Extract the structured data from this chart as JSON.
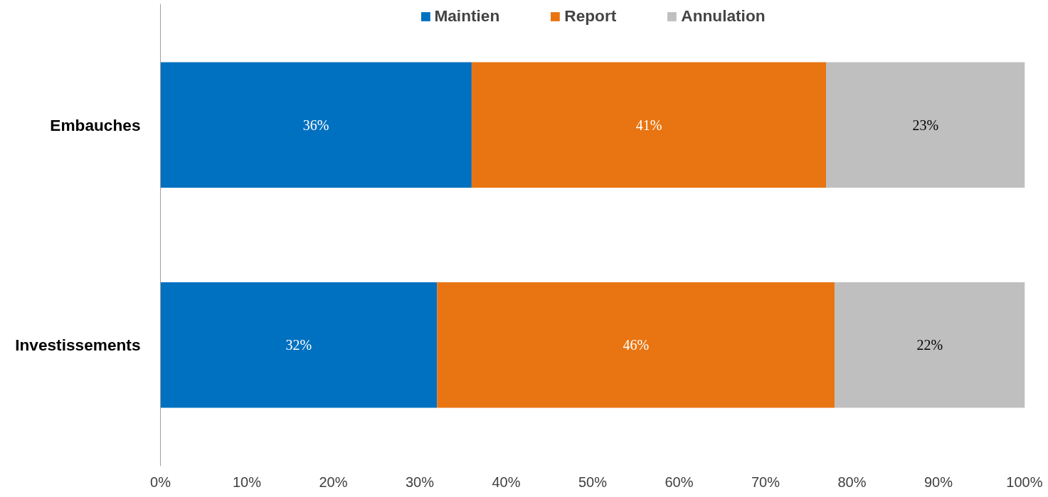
{
  "chart_data": {
    "type": "bar",
    "orientation": "horizontal",
    "stacked": true,
    "categories": [
      "Embauches",
      "Investissements"
    ],
    "series": [
      {
        "name": "Maintien",
        "color": "#0070c0",
        "values": [
          36,
          32
        ],
        "value_labels": [
          "36%",
          "32%"
        ]
      },
      {
        "name": "Report",
        "color": "#e87511",
        "values": [
          41,
          46
        ],
        "value_labels": [
          "41%",
          "46%"
        ]
      },
      {
        "name": "Annulation",
        "color": "#bfbfbf",
        "values": [
          23,
          22
        ],
        "value_labels": [
          "23%",
          "22%"
        ]
      }
    ],
    "xlim": [
      0,
      100
    ],
    "xticks": [
      {
        "value": 0,
        "label": "0%"
      },
      {
        "value": 10,
        "label": "10%"
      },
      {
        "value": 20,
        "label": "20%"
      },
      {
        "value": 30,
        "label": "30%"
      },
      {
        "value": 40,
        "label": "40%"
      },
      {
        "value": 50,
        "label": "50%"
      },
      {
        "value": 60,
        "label": "60%"
      },
      {
        "value": 70,
        "label": "70%"
      },
      {
        "value": 80,
        "label": "80%"
      },
      {
        "value": 90,
        "label": "90%"
      },
      {
        "value": 100,
        "label": "100%"
      }
    ],
    "grid": false,
    "legend": "top"
  }
}
